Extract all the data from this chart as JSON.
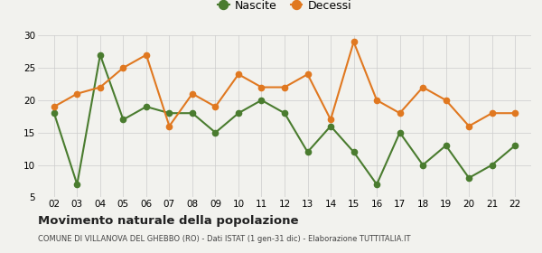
{
  "years": [
    2,
    3,
    4,
    5,
    6,
    7,
    8,
    9,
    10,
    11,
    12,
    13,
    14,
    15,
    16,
    17,
    18,
    19,
    20,
    21,
    22
  ],
  "nascite": [
    18,
    7,
    27,
    17,
    19,
    18,
    18,
    15,
    18,
    20,
    18,
    12,
    16,
    12,
    7,
    15,
    10,
    13,
    8,
    10,
    13
  ],
  "decessi": [
    19,
    21,
    22,
    25,
    27,
    16,
    21,
    19,
    24,
    22,
    22,
    24,
    17,
    29,
    20,
    18,
    22,
    20,
    16,
    18,
    18
  ],
  "nascite_color": "#4a7c2f",
  "decessi_color": "#e07820",
  "background_color": "#f2f2ee",
  "grid_color": "#cccccc",
  "ylim": [
    5,
    30
  ],
  "yticks": [
    5,
    10,
    15,
    20,
    25,
    30
  ],
  "title": "Movimento naturale della popolazione",
  "subtitle": "COMUNE DI VILLANOVA DEL GHEBBO (RO) - Dati ISTAT (1 gen-31 dic) - Elaborazione TUTTITALIA.IT",
  "legend_nascite": "Nascite",
  "legend_decessi": "Decessi",
  "marker_size": 4.5,
  "line_width": 1.5
}
